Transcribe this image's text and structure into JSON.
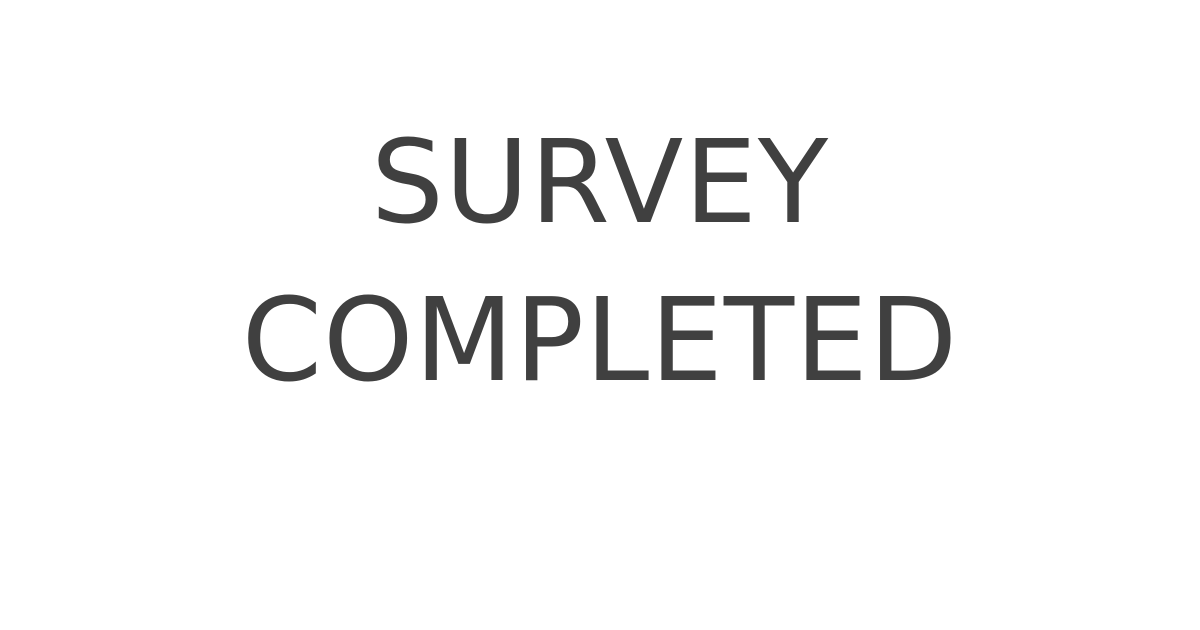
{
  "message": {
    "line1": "SURVEY",
    "line2": "COMPLETED"
  },
  "colors": {
    "background": "#ffffff",
    "text": "#404040"
  }
}
